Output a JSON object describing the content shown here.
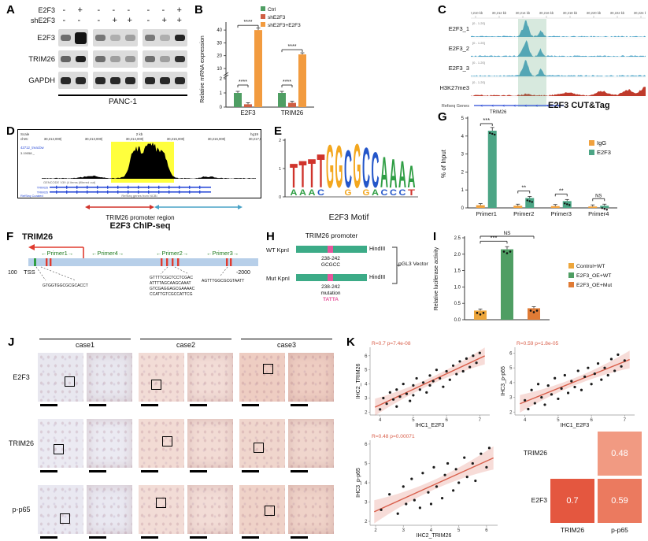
{
  "figure": {
    "background": "#ffffff"
  },
  "colors": {
    "ctrl_green": "#4f9e63",
    "sh_red": "#cf5f44",
    "rescue_orange": "#f29b3f",
    "igg_orange": "#f0a13e",
    "e2f3_teal": "#4ca585",
    "track_blue": "#4aa3c7",
    "track_red": "#bf3a2b",
    "gene_blue": "#2a4bd7",
    "promoter_bar_blue": "#b7cfe9",
    "construct_teal": "#3cab87",
    "insert_pink": "#e8559d",
    "primer_green": "#1d7a1d",
    "tick_red": "#e03b2f",
    "fit_red": "#d9604c",
    "motif": {
      "A": "#2f9e44",
      "C": "#2456c9",
      "G": "#f3a71f",
      "T": "#d0342c"
    }
  },
  "panels": {
    "A": {
      "label": "A",
      "condition_rows": [
        {
          "name": "E2F3",
          "values": [
            "-",
            "+",
            "-",
            "-",
            "-",
            "-",
            "-",
            "+"
          ]
        },
        {
          "name": "shE2F3",
          "values": [
            "-",
            "-",
            "-",
            "+",
            "+",
            "-",
            "+",
            "+"
          ]
        }
      ],
      "blots": [
        {
          "name": "E2F3",
          "intensity": [
            0.55,
            1.0,
            0.5,
            0.22,
            0.3,
            0.5,
            0.22,
            0.92
          ]
        },
        {
          "name": "TRIM26",
          "intensity": [
            0.6,
            0.95,
            0.55,
            0.3,
            0.35,
            0.55,
            0.3,
            0.85
          ]
        },
        {
          "name": "GAPDH",
          "intensity": [
            0.9,
            0.9,
            0.9,
            0.9,
            0.9,
            0.9,
            0.9,
            0.9
          ]
        }
      ],
      "lane_groups": [
        2,
        3,
        3
      ],
      "cell_line": "PANC-1"
    },
    "B": {
      "label": "B"
    },
    "C": {
      "label": "C",
      "title": "E2F3 CUT&Tag",
      "coords": [
        "30,210 kb",
        "30,212 kb",
        "30,214 kb",
        "30,216 kb",
        "30,218 kb",
        "30,220 kb",
        "30,222 kb",
        "30,224 kb"
      ],
      "tracks": [
        {
          "name": "E2F3_1",
          "scale": "[0 - 1.20]",
          "color": "#4aa3c7",
          "kind": "e2f3"
        },
        {
          "name": "E2F3_2",
          "scale": "[0 - 1.20]",
          "color": "#4aa3c7",
          "kind": "e2f3"
        },
        {
          "name": "E2F3_3",
          "scale": "[0 - 1.20]",
          "color": "#4aa3c7",
          "kind": "e2f3"
        },
        {
          "name": "H3K27me3",
          "scale": "[0 - 1.20]",
          "color": "#bf3a2b",
          "kind": "h3k"
        }
      ],
      "gene_row_label": "Refseq Genes",
      "gene": "TRIM26"
    },
    "D": {
      "label": "D",
      "scale_label": "Scale",
      "chrom": "chr6:",
      "kb": "2 kb",
      "genome": "hg19",
      "coords": [
        "30,212,000|",
        "30,213,000|",
        "30,214,000|",
        "30,215,000|",
        "30,216,000|",
        "30,217,000|"
      ],
      "track_name": "42712_treat.bw",
      "track_max": "3.19058 _",
      "gencode": "GENCODE V39 (4 items (filtered out)",
      "gene": "TRIM26",
      "refseq_line": "RefSeq genes from NCBI",
      "refseq_curated": "RefSeq Curated",
      "promoter_label": "TRIM26 promoter region",
      "subtitle": "E2F3  ChIP-seq"
    },
    "E": {
      "label": "E",
      "title": "E2F3 Motif",
      "y_ticks": [
        "2",
        "1",
        "0"
      ],
      "positions": [
        {
          "main": "T",
          "h": 0.55,
          "sub": "A"
        },
        {
          "main": "T",
          "h": 0.6,
          "sub": "A"
        },
        {
          "main": "T",
          "h": 0.65,
          "sub": "A"
        },
        {
          "main": "T",
          "h": 0.75,
          "sub": "C"
        },
        {
          "main": "G",
          "h": 0.98,
          "sub": ""
        },
        {
          "main": "G",
          "h": 0.95,
          "sub": ""
        },
        {
          "main": "C",
          "h": 0.85,
          "sub": "G"
        },
        {
          "main": "G",
          "h": 1.0,
          "sub": ""
        },
        {
          "main": "C",
          "h": 0.9,
          "sub": "G"
        },
        {
          "main": "C",
          "h": 0.8,
          "sub": "A"
        },
        {
          "main": "A",
          "h": 0.7,
          "sub": "C"
        },
        {
          "main": "A",
          "h": 0.65,
          "sub": "C"
        },
        {
          "main": "A",
          "h": 0.6,
          "sub": "C"
        },
        {
          "main": "A",
          "h": 0.5,
          "sub": "T"
        }
      ]
    },
    "F": {
      "label": "F",
      "gene": "TRIM26",
      "tss": "TSS",
      "start": "100",
      "end": "-2000",
      "primers": [
        {
          "label": "←Primer1→",
          "seq": [
            "GTGGTGGCGCGCACCT"
          ]
        },
        {
          "label": "←Primer4→",
          "seq": []
        },
        {
          "label": "←Primer2→",
          "seq": [
            "GTTTTCGCTCCTCGAC",
            "ATTTTAGCAAGCAAAT",
            "GTCGAGGAGCGAAAAC",
            "CCATTGTCGCCATTCG"
          ]
        },
        {
          "label": "←Primer3→",
          "seq": [
            "AGTTTGGCGCGTAATT"
          ]
        }
      ]
    },
    "G": {
      "label": "G"
    },
    "H": {
      "label": "H",
      "title": "TRIM26 promoter",
      "rows": [
        {
          "name": "WT",
          "left": "KpnI",
          "right": "HindIII",
          "site": "238-242",
          "note": "GCGCC"
        },
        {
          "name": "Mut",
          "left": "KpnI",
          "right": "HindIII",
          "site": "238-242",
          "note": "mutation",
          "mut_seq": "TATTA"
        }
      ],
      "vector": "pGL3 Vector"
    },
    "I": {
      "label": "I"
    },
    "J": {
      "label": "J",
      "columns": [
        "case1",
        "case2",
        "case3"
      ],
      "rows": [
        "E2F3",
        "TRIM26",
        "p-p65"
      ],
      "tints": [
        [
          "#e8e7ef",
          "#f2dcd6",
          "#eecdc2"
        ],
        [
          "#ebeaf2",
          "#f2dbd4",
          "#f0d6cd"
        ],
        [
          "#e9e8f1",
          "#f2dcd6",
          "#efd2c8"
        ]
      ]
    },
    "K": {
      "label": "K"
    }
  },
  "chart_data": [
    {
      "id": "B",
      "type": "bar",
      "ylabel": "Relative mRNA expression",
      "categories": [
        "E2F3",
        "TRIM26"
      ],
      "series": [
        {
          "name": "Ctrl",
          "color": "#4f9e63",
          "values": [
            1.0,
            1.0
          ],
          "errors": [
            0.08,
            0.1
          ]
        },
        {
          "name": "shE2F3",
          "color": "#cf5f44",
          "values": [
            0.2,
            0.3
          ],
          "errors": [
            0.04,
            0.05
          ]
        },
        {
          "name": "shE2F3+E2F3",
          "color": "#f29b3f",
          "values": [
            40,
            21
          ],
          "errors": [
            1.5,
            1.2
          ]
        }
      ],
      "axis_break": true,
      "y_ticks_lower": [
        0,
        1,
        2
      ],
      "y_ticks_upper": [
        10,
        20,
        30,
        40
      ],
      "ylim": [
        0,
        45
      ],
      "significance": [
        {
          "cat": 0,
          "from": 0,
          "to": 1,
          "label": "****",
          "level": "low"
        },
        {
          "cat": 0,
          "from": 0,
          "to": 2,
          "label": "****",
          "level": "high"
        },
        {
          "cat": 1,
          "from": 0,
          "to": 1,
          "label": "****",
          "level": "low"
        },
        {
          "cat": 1,
          "from": 0,
          "to": 2,
          "label": "****",
          "level": "high"
        }
      ]
    },
    {
      "id": "G",
      "type": "bar",
      "ylabel": "% of Input",
      "categories": [
        "Primer1",
        "Primer2",
        "Primer3",
        "Primer4"
      ],
      "series": [
        {
          "name": "IgG",
          "color": "#f0a13e",
          "values": [
            0.15,
            0.12,
            0.1,
            0.08
          ],
          "errors": [
            0.05,
            0.04,
            0.04,
            0.03
          ]
        },
        {
          "name": "E2F3",
          "color": "#4ca585",
          "values": [
            4.3,
            0.55,
            0.38,
            0.12
          ],
          "errors": [
            0.18,
            0.07,
            0.06,
            0.04
          ]
        }
      ],
      "ylim": [
        0,
        5
      ],
      "y_ticks": [
        0,
        1,
        2,
        3,
        4,
        5
      ],
      "significance": [
        {
          "cat": 0,
          "label": "***"
        },
        {
          "cat": 1,
          "label": "**"
        },
        {
          "cat": 2,
          "label": "**"
        },
        {
          "cat": 3,
          "label": "NS"
        }
      ]
    },
    {
      "id": "I",
      "type": "bar",
      "ylabel": "Relative luciferase activity",
      "categories": [
        "Control+WT",
        "E2F3_OE+WT",
        "E2F3_OE+Mut"
      ],
      "values": [
        0.28,
        2.15,
        0.35
      ],
      "errors": [
        0.04,
        0.08,
        0.04
      ],
      "colors": [
        "#eda63c",
        "#4f9e63",
        "#e07b35"
      ],
      "ylim": [
        0,
        2.5
      ],
      "y_ticks": [
        "0.0",
        "0.5",
        "1.0",
        "1.5",
        "2.0",
        "2.5"
      ],
      "significance": [
        {
          "from": 0,
          "to": 1,
          "label": "***"
        },
        {
          "from": 0,
          "to": 2,
          "label": "NS"
        }
      ]
    },
    {
      "id": "K1",
      "type": "scatter",
      "annotation": "R=0.7 p=7.4e-08",
      "xlabel": "IHC1_E2F3",
      "ylabel": "IHC2_TRIM26",
      "xlim": [
        3.7,
        7.3
      ],
      "ylim": [
        1.8,
        6.6
      ],
      "x_ticks": [
        4,
        5,
        6,
        7
      ],
      "y_ticks": [
        2,
        3,
        4,
        5,
        6
      ],
      "fit_color": "#d9604c",
      "points": [
        [
          4.0,
          2.2
        ],
        [
          4.1,
          3.0
        ],
        [
          4.2,
          2.6
        ],
        [
          4.3,
          3.4
        ],
        [
          4.4,
          2.9
        ],
        [
          4.5,
          3.6
        ],
        [
          4.5,
          2.4
        ],
        [
          4.6,
          3.1
        ],
        [
          4.7,
          4.0
        ],
        [
          4.8,
          3.3
        ],
        [
          4.9,
          2.8
        ],
        [
          5.0,
          3.9
        ],
        [
          5.0,
          3.2
        ],
        [
          5.1,
          4.4
        ],
        [
          5.2,
          3.6
        ],
        [
          5.3,
          4.1
        ],
        [
          5.4,
          3.4
        ],
        [
          5.5,
          4.6
        ],
        [
          5.5,
          3.9
        ],
        [
          5.6,
          4.2
        ],
        [
          5.7,
          5.0
        ],
        [
          5.8,
          4.4
        ],
        [
          5.9,
          3.8
        ],
        [
          6.0,
          4.9
        ],
        [
          6.1,
          4.3
        ],
        [
          6.2,
          5.3
        ],
        [
          6.3,
          4.7
        ],
        [
          6.4,
          5.6
        ],
        [
          6.5,
          4.9
        ],
        [
          6.6,
          5.8
        ],
        [
          6.7,
          5.2
        ],
        [
          6.8,
          6.0
        ],
        [
          6.9,
          5.5
        ],
        [
          7.0,
          6.2
        ]
      ]
    },
    {
      "id": "K2",
      "type": "scatter",
      "annotation": "R=0.59 p=1.8e-05",
      "xlabel": "IHC1_E2F3",
      "ylabel": "IHC3_p-p65",
      "xlim": [
        3.7,
        7.3
      ],
      "ylim": [
        1.8,
        6.4
      ],
      "x_ticks": [
        4,
        5,
        6,
        7
      ],
      "y_ticks": [
        2,
        3,
        4,
        5,
        6
      ],
      "fit_color": "#d9604c",
      "points": [
        [
          4.0,
          2.8
        ],
        [
          4.1,
          2.2
        ],
        [
          4.2,
          3.5
        ],
        [
          4.3,
          2.6
        ],
        [
          4.4,
          3.9
        ],
        [
          4.5,
          3.0
        ],
        [
          4.6,
          2.5
        ],
        [
          4.7,
          3.8
        ],
        [
          4.8,
          3.2
        ],
        [
          4.9,
          4.3
        ],
        [
          5.0,
          2.9
        ],
        [
          5.1,
          3.6
        ],
        [
          5.2,
          4.5
        ],
        [
          5.3,
          3.3
        ],
        [
          5.4,
          4.1
        ],
        [
          5.5,
          3.7
        ],
        [
          5.6,
          4.8
        ],
        [
          5.7,
          3.5
        ],
        [
          5.8,
          4.4
        ],
        [
          5.9,
          5.0
        ],
        [
          6.0,
          3.9
        ],
        [
          6.1,
          4.6
        ],
        [
          6.2,
          5.3
        ],
        [
          6.3,
          4.2
        ],
        [
          6.4,
          5.0
        ],
        [
          6.5,
          4.5
        ],
        [
          6.6,
          5.6
        ],
        [
          6.7,
          4.8
        ],
        [
          6.8,
          5.9
        ],
        [
          6.9,
          5.1
        ],
        [
          7.0,
          5.5
        ]
      ]
    },
    {
      "id": "K3",
      "type": "scatter",
      "annotation": "R=0.48 p=0.00071",
      "xlabel": "IHC2_TRIM26",
      "ylabel": "IHC3_p-p65",
      "xlim": [
        1.8,
        6.4
      ],
      "ylim": [
        1.8,
        6.2
      ],
      "x_ticks": [
        2,
        3,
        4,
        5,
        6
      ],
      "y_ticks": [
        2,
        3,
        4,
        5,
        6
      ],
      "fit_color": "#d9604c",
      "points": [
        [
          2.2,
          2.6
        ],
        [
          2.5,
          3.4
        ],
        [
          2.8,
          2.4
        ],
        [
          3.0,
          3.8
        ],
        [
          3.1,
          2.9
        ],
        [
          3.3,
          4.2
        ],
        [
          3.4,
          3.1
        ],
        [
          3.6,
          2.7
        ],
        [
          3.7,
          4.5
        ],
        [
          3.9,
          3.5
        ],
        [
          4.0,
          2.9
        ],
        [
          4.1,
          4.8
        ],
        [
          4.2,
          3.8
        ],
        [
          4.4,
          3.2
        ],
        [
          4.5,
          4.4
        ],
        [
          4.6,
          5.0
        ],
        [
          4.8,
          3.6
        ],
        [
          4.9,
          4.7
        ],
        [
          5.0,
          4.0
        ],
        [
          5.2,
          5.3
        ],
        [
          5.3,
          4.3
        ],
        [
          5.5,
          5.0
        ],
        [
          5.6,
          4.1
        ],
        [
          5.8,
          5.5
        ],
        [
          6.0,
          4.8
        ],
        [
          6.1,
          5.8
        ]
      ]
    },
    {
      "id": "K4",
      "type": "heatmap",
      "rows": [
        "TRIM26",
        "E2F3"
      ],
      "cols": [
        "TRIM26",
        "p-p65"
      ],
      "cells": [
        {
          "row": "TRIM26",
          "col": "p-p65",
          "value": 0.48,
          "color": "#f19a82"
        },
        {
          "row": "E2F3",
          "col": "TRIM26",
          "value": 0.7,
          "color": "#e4573f"
        },
        {
          "row": "E2F3",
          "col": "p-p65",
          "value": 0.59,
          "color": "#eb7a5f"
        }
      ]
    }
  ]
}
